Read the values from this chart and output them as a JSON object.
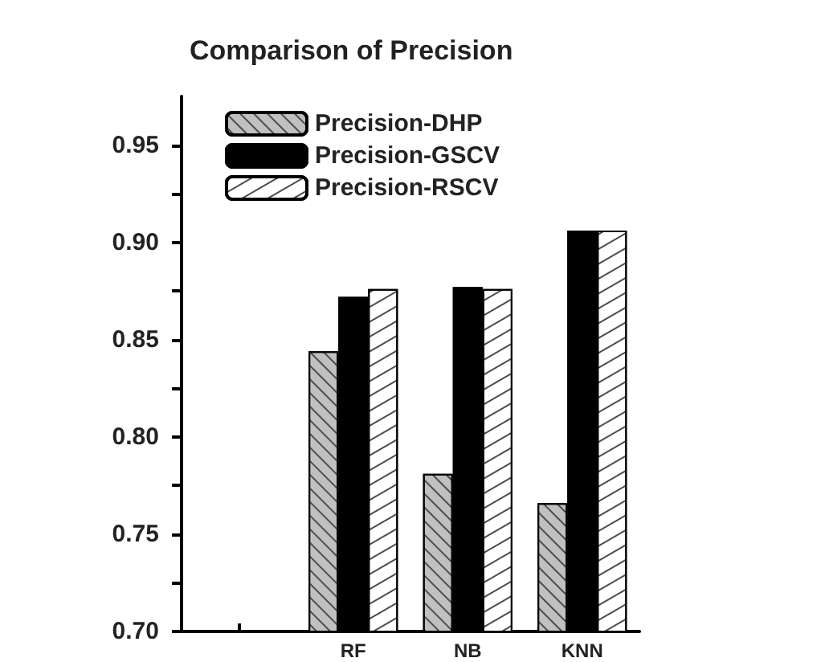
{
  "chart_data": {
    "type": "bar",
    "title": "Comparison of Precision",
    "categories": [
      null,
      "RF",
      "NB",
      "KNN"
    ],
    "series": [
      {
        "name": "Precision-DHP",
        "color": "#c0c0c0",
        "values": [
          null,
          0.844,
          0.781,
          0.766
        ]
      },
      {
        "name": "Precision-GSCV",
        "color": "#000000",
        "values": [
          null,
          0.872,
          0.877,
          0.906
        ]
      },
      {
        "name": "Precision-RSCV",
        "color": "#ffffff",
        "values": [
          null,
          0.876,
          0.876,
          0.906
        ]
      }
    ],
    "ylim": [
      0.7,
      0.975
    ],
    "yticks": [
      {
        "value": 0.7,
        "label": "0.70"
      },
      {
        "value": 0.725,
        "label": null
      },
      {
        "value": 0.75,
        "label": "0.75"
      },
      {
        "value": 0.775,
        "label": null
      },
      {
        "value": 0.8,
        "label": "0.80"
      },
      {
        "value": 0.825,
        "label": null
      },
      {
        "value": 0.85,
        "label": "0.85"
      },
      {
        "value": 0.875,
        "label": null
      },
      {
        "value": 0.9,
        "label": "0.90"
      },
      {
        "value": 0.925,
        "label": null
      },
      {
        "value": 0.95,
        "label": "0.95"
      }
    ],
    "grid": false,
    "legend": "top left"
  }
}
